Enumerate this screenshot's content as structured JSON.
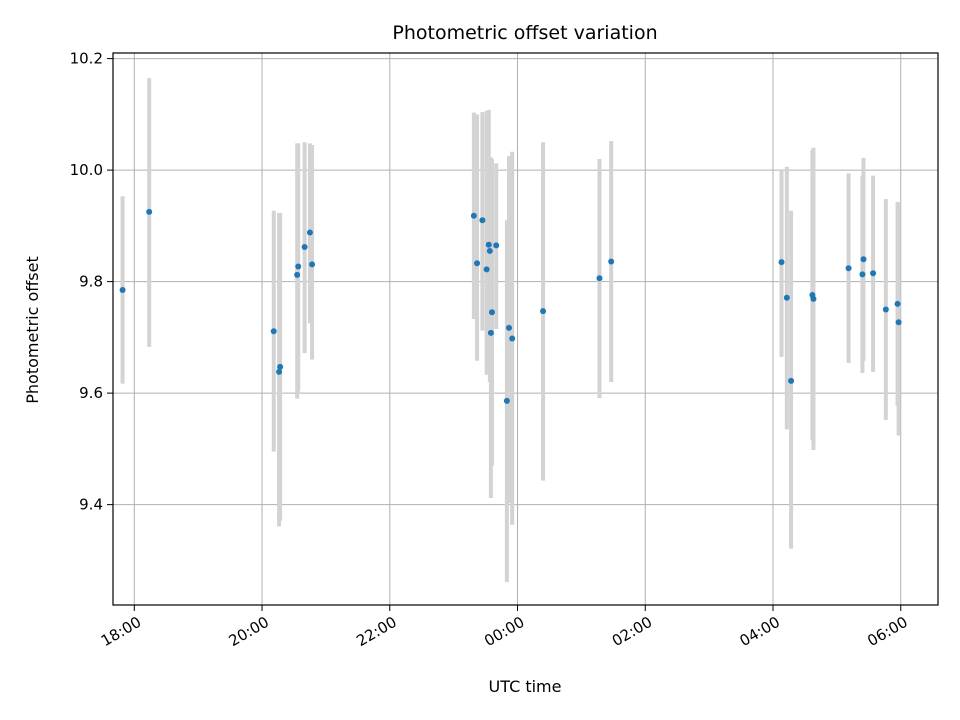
{
  "chart_data": {
    "type": "scatter",
    "title": "Photometric offset variation",
    "xlabel": "UTC time",
    "ylabel": "Photometric offset",
    "grid": true,
    "x_axis": {
      "kind": "time",
      "range": [
        "17:40",
        "06:35"
      ],
      "ticks": [
        "18:00",
        "20:00",
        "22:00",
        "00:00",
        "02:00",
        "04:00",
        "06:00"
      ]
    },
    "y_axis": {
      "range": [
        9.22,
        10.21
      ],
      "ticks": [
        9.4,
        9.6,
        9.8,
        10.0,
        10.2
      ],
      "tick_labels": [
        "9.4",
        "9.6",
        "9.8",
        "10.0",
        "10.2"
      ]
    },
    "colors": {
      "point": "#1f77b4",
      "errorbar": "#d3d3d3",
      "grid": "#b0b0b0"
    },
    "series": [
      {
        "points": [
          {
            "t": "17:49",
            "y": 9.785,
            "lo": 9.617,
            "hi": 9.953
          },
          {
            "t": "18:14",
            "y": 9.925,
            "lo": 9.683,
            "hi": 10.165
          },
          {
            "t": "20:11",
            "y": 9.711,
            "lo": 9.495,
            "hi": 9.927
          },
          {
            "t": "20:16",
            "y": 9.638,
            "lo": 9.361,
            "hi": 9.923
          },
          {
            "t": "20:17",
            "y": 9.647,
            "lo": 9.371,
            "hi": 9.923
          },
          {
            "t": "20:33",
            "y": 9.812,
            "lo": 9.59,
            "hi": 10.048
          },
          {
            "t": "20:34",
            "y": 9.827,
            "lo": 9.603,
            "hi": 10.048
          },
          {
            "t": "20:40",
            "y": 9.862,
            "lo": 9.672,
            "hi": 10.05
          },
          {
            "t": "20:45",
            "y": 9.888,
            "lo": 9.725,
            "hi": 10.048
          },
          {
            "t": "20:47",
            "y": 9.831,
            "lo": 9.66,
            "hi": 10.045
          },
          {
            "t": "23:19",
            "y": 9.918,
            "lo": 9.733,
            "hi": 10.103
          },
          {
            "t": "23:22",
            "y": 9.833,
            "lo": 9.658,
            "hi": 10.1
          },
          {
            "t": "23:27",
            "y": 9.91,
            "lo": 9.712,
            "hi": 10.104
          },
          {
            "t": "23:31",
            "y": 9.822,
            "lo": 9.633,
            "hi": 10.106
          },
          {
            "t": "23:33",
            "y": 9.866,
            "lo": 9.7,
            "hi": 10.108
          },
          {
            "t": "23:34",
            "y": 9.855,
            "lo": 9.62,
            "hi": 10.02
          },
          {
            "t": "23:35",
            "y": 9.708,
            "lo": 9.412,
            "hi": 10.023
          },
          {
            "t": "23:36",
            "y": 9.745,
            "lo": 9.47,
            "hi": 10.02
          },
          {
            "t": "23:40",
            "y": 9.865,
            "lo": 9.715,
            "hi": 10.012
          },
          {
            "t": "23:50",
            "y": 9.586,
            "lo": 9.261,
            "hi": 9.91
          },
          {
            "t": "23:52",
            "y": 9.717,
            "lo": 9.403,
            "hi": 10.025
          },
          {
            "t": "23:55",
            "y": 9.698,
            "lo": 9.364,
            "hi": 10.033
          },
          {
            "t": "00:24",
            "y": 9.747,
            "lo": 9.443,
            "hi": 10.05
          },
          {
            "t": "01:17",
            "y": 9.806,
            "lo": 9.591,
            "hi": 10.02
          },
          {
            "t": "01:28",
            "y": 9.836,
            "lo": 9.62,
            "hi": 10.052
          },
          {
            "t": "04:08",
            "y": 9.835,
            "lo": 9.665,
            "hi": 10.0
          },
          {
            "t": "04:13",
            "y": 9.771,
            "lo": 9.535,
            "hi": 10.006
          },
          {
            "t": "04:17",
            "y": 9.622,
            "lo": 9.321,
            "hi": 9.927
          },
          {
            "t": "04:37",
            "y": 9.776,
            "lo": 9.515,
            "hi": 10.036
          },
          {
            "t": "04:38",
            "y": 9.769,
            "lo": 9.498,
            "hi": 10.04
          },
          {
            "t": "05:11",
            "y": 9.824,
            "lo": 9.654,
            "hi": 9.994
          },
          {
            "t": "05:24",
            "y": 9.813,
            "lo": 9.636,
            "hi": 9.99
          },
          {
            "t": "05:25",
            "y": 9.84,
            "lo": 9.658,
            "hi": 10.022
          },
          {
            "t": "05:34",
            "y": 9.815,
            "lo": 9.638,
            "hi": 9.99
          },
          {
            "t": "05:46",
            "y": 9.75,
            "lo": 9.552,
            "hi": 9.948
          },
          {
            "t": "05:57",
            "y": 9.76,
            "lo": 9.577,
            "hi": 9.943
          },
          {
            "t": "05:58",
            "y": 9.727,
            "lo": 9.524,
            "hi": 9.94
          }
        ]
      }
    ]
  }
}
